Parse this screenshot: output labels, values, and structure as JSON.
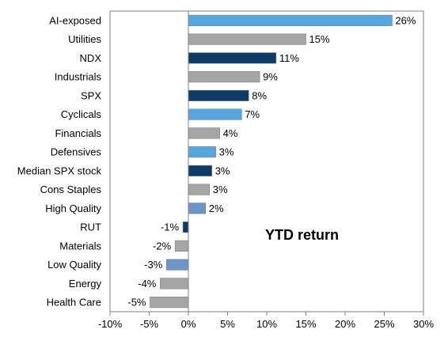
{
  "chart_data": {
    "type": "bar",
    "orientation": "horizontal",
    "annotation": "YTD return",
    "title": "",
    "xlabel": "",
    "ylabel": "",
    "xlim": [
      -10,
      30
    ],
    "ticks": [
      -10,
      -5,
      0,
      5,
      10,
      15,
      20,
      25,
      30
    ],
    "tick_labels": [
      "-10%",
      "-5%",
      "0%",
      "5%",
      "10%",
      "15%",
      "20%",
      "25%",
      "30%"
    ],
    "grid": false,
    "legend": "none",
    "categories": [
      "AI-exposed",
      "Utilities",
      "NDX",
      "Industrials",
      "SPX",
      "Cyclicals",
      "Financials",
      "Defensives",
      "Median SPX stock",
      "Cons Staples",
      "High Quality",
      "RUT",
      "Materials",
      "Low Quality",
      "Energy",
      "Health Care"
    ],
    "values": [
      26,
      15,
      11,
      9,
      8,
      7,
      4,
      3,
      3,
      3,
      2,
      -1,
      -2,
      -3,
      -4,
      -5
    ],
    "value_labels": [
      "26%",
      "15%",
      "11%",
      "9%",
      "8%",
      "7%",
      "4%",
      "3%",
      "3%",
      "3%",
      "2%",
      "-1%",
      "-2%",
      "-3%",
      "-4%",
      "-5%"
    ],
    "bar_values_precise": [
      26.0,
      15.0,
      11.2,
      9.1,
      7.7,
      6.8,
      4.0,
      3.5,
      3.0,
      2.7,
      2.2,
      -0.7,
      -1.7,
      -2.8,
      -3.6,
      -4.9
    ],
    "bar_colors": [
      "#58a6e0",
      "#a6a6a6",
      "#0e3a66",
      "#a6a6a6",
      "#0e3a66",
      "#58a6e0",
      "#a6a6a6",
      "#58a6e0",
      "#0e3a66",
      "#a6a6a6",
      "#6f95c8",
      "#0e3a66",
      "#a6a6a6",
      "#6f95c8",
      "#a6a6a6",
      "#a6a6a6"
    ],
    "bar_border_color": "#808080",
    "axis_color": "#808080"
  }
}
